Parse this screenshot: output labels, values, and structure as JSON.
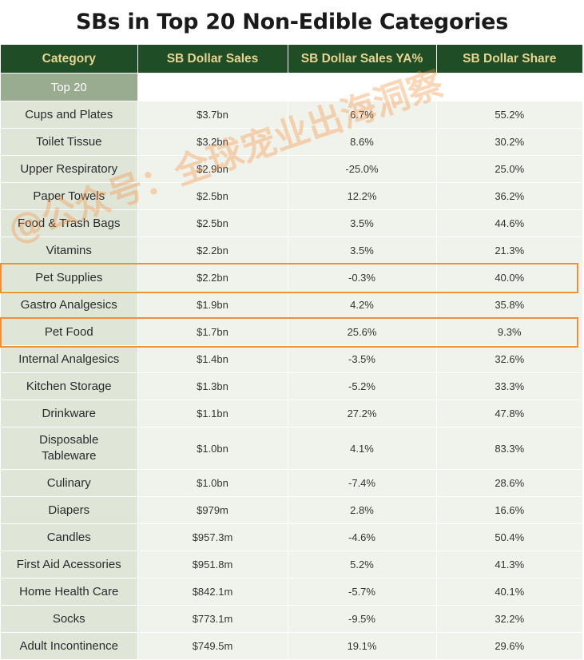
{
  "title": "SBs in Top 20 Non-Edible Categories",
  "columns": [
    "Category",
    "SB Dollar Sales",
    "SB Dollar Sales YA%",
    "SB Dollar Share"
  ],
  "group_label": "Top 20",
  "rows": [
    {
      "category": "Cups and Plates",
      "sales": "$3.7bn",
      "ya": "6.7%",
      "share": "55.2%"
    },
    {
      "category": "Toilet Tissue",
      "sales": "$3.2bn",
      "ya": "8.6%",
      "share": "30.2%"
    },
    {
      "category": "Upper Respiratory",
      "sales": "$2.9bn",
      "ya": "-25.0%",
      "share": "25.0%"
    },
    {
      "category": "Paper Towels",
      "sales": "$2.5bn",
      "ya": "12.2%",
      "share": "36.2%"
    },
    {
      "category": "Food & Trash Bags",
      "sales": "$2.5bn",
      "ya": "3.5%",
      "share": "44.6%"
    },
    {
      "category": "Vitamins",
      "sales": "$2.2bn",
      "ya": "3.5%",
      "share": "21.3%"
    },
    {
      "category": "Pet Supplies",
      "sales": "$2.2bn",
      "ya": "-0.3%",
      "share": "40.0%"
    },
    {
      "category": "Gastro Analgesics",
      "sales": "$1.9bn",
      "ya": "4.2%",
      "share": "35.8%"
    },
    {
      "category": "Pet Food",
      "sales": "$1.7bn",
      "ya": "25.6%",
      "share": "9.3%"
    },
    {
      "category": "Internal Analgesics",
      "sales": "$1.4bn",
      "ya": "-3.5%",
      "share": "32.6%"
    },
    {
      "category": "Kitchen Storage",
      "sales": "$1.3bn",
      "ya": "-5.2%",
      "share": "33.3%"
    },
    {
      "category": "Drinkware",
      "sales": "$1.1bn",
      "ya": "27.2%",
      "share": "47.8%"
    },
    {
      "category": "Disposable\nTableware",
      "sales": "$1.0bn",
      "ya": "4.1%",
      "share": "83.3%"
    },
    {
      "category": "Culinary",
      "sales": "$1.0bn",
      "ya": "-7.4%",
      "share": "28.6%"
    },
    {
      "category": "Diapers",
      "sales": "$979m",
      "ya": "2.8%",
      "share": "16.6%"
    },
    {
      "category": "Candles",
      "sales": "$957.3m",
      "ya": "-4.6%",
      "share": "50.4%"
    },
    {
      "category": "First Aid Acessories",
      "sales": "$951.8m",
      "ya": "5.2%",
      "share": "41.3%"
    },
    {
      "category": "Home Health Care",
      "sales": "$842.1m",
      "ya": "-5.7%",
      "share": "40.1%"
    },
    {
      "category": "Socks",
      "sales": "$773.1m",
      "ya": "-9.5%",
      "share": "32.2%"
    },
    {
      "category": "Adult Incontinence",
      "sales": "$749.5m",
      "ya": "19.1%",
      "share": "29.6%"
    }
  ],
  "highlighted_categories": [
    "Pet Supplies",
    "Pet Food"
  ],
  "watermark": "@公众号：全球宠业出海洞察",
  "colors": {
    "header_bg": "#1f4d25",
    "header_text": "#e8d592",
    "group_bg": "#9aac8f",
    "category_bg": "#dfe6d8",
    "cell_bg": "#f0f3ec",
    "highlight_border": "#ef8f3a"
  }
}
